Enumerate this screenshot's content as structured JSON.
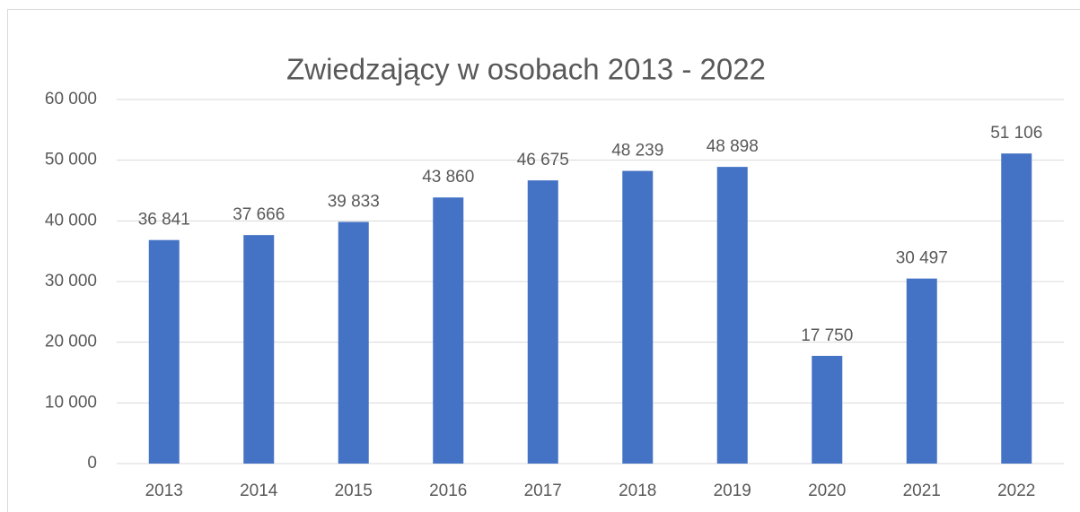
{
  "chart_data": {
    "type": "bar",
    "title": "Zwiedzający w osobach 2013 - 2022",
    "categories": [
      "2013",
      "2014",
      "2015",
      "2016",
      "2017",
      "2018",
      "2019",
      "2020",
      "2021",
      "2022"
    ],
    "values": [
      36841,
      37666,
      39833,
      43860,
      46675,
      48239,
      48898,
      17750,
      30497,
      51106
    ],
    "value_labels": [
      "36 841",
      "37 666",
      "39 833",
      "43 860",
      "46 675",
      "48 239",
      "48 898",
      "17 750",
      "30 497",
      "51 106"
    ],
    "color": "#4472c4",
    "ylim": [
      0,
      60000
    ],
    "yticks": [
      0,
      {
        "value": 10000,
        "label": "10 000"
      },
      {
        "value": 20000,
        "label": "20 000"
      },
      {
        "value": 30000,
        "label": "30 000"
      },
      {
        "value": 40000,
        "label": "40 000"
      },
      {
        "value": 50000,
        "label": "50 000"
      },
      {
        "value": 60000,
        "label": "60 000"
      }
    ],
    "grid": true
  }
}
